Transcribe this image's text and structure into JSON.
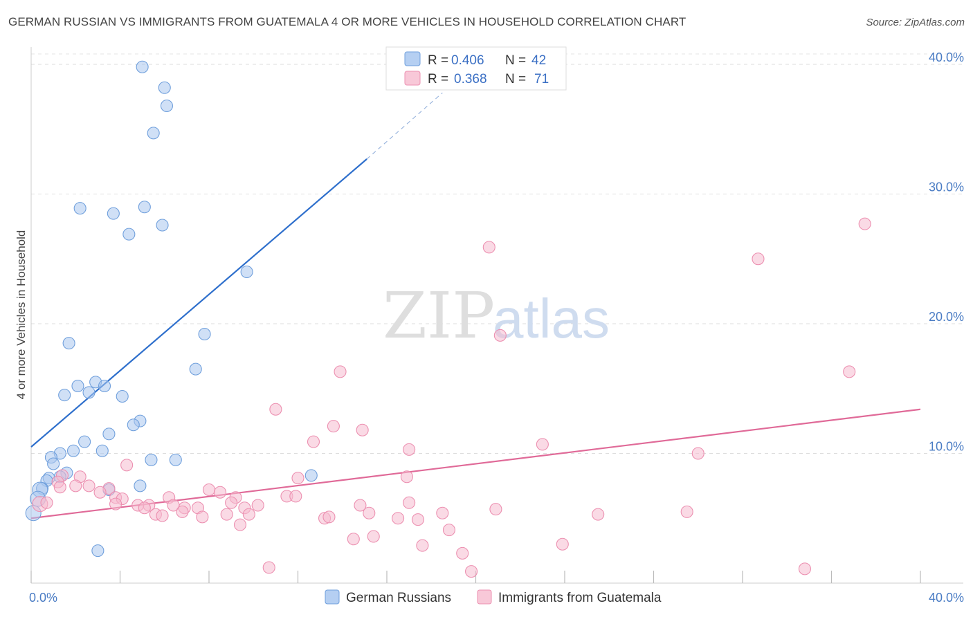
{
  "title": "GERMAN RUSSIAN VS IMMIGRANTS FROM GUATEMALA 4 OR MORE VEHICLES IN HOUSEHOLD CORRELATION CHART",
  "source": "Source: ZipAtlas.com",
  "watermark": {
    "zip": "ZIP",
    "atlas": "atlas"
  },
  "chart_data": {
    "type": "scatter",
    "ylabel": "4 or more Vehicles in Household",
    "xlabel": "",
    "xlim": [
      0,
      40
    ],
    "ylim": [
      0,
      40.8
    ],
    "y_ticks": [
      10,
      20,
      30,
      40
    ],
    "y_tick_labels": [
      "10.0%",
      "20.0%",
      "30.0%",
      "40.0%"
    ],
    "x_tick_labels": [
      "0.0%",
      "40.0%"
    ],
    "grid": true,
    "legend_position": "top-center",
    "stats": [
      {
        "r_label": "R =",
        "r": "0.406",
        "n_label": "N =",
        "n": "42"
      },
      {
        "r_label": "R =",
        "r": "0.368",
        "n_label": "N =",
        "n": "71"
      }
    ],
    "series": [
      {
        "name": "German Russians",
        "color": "#a9c6ee",
        "stroke": "#6f9fdc",
        "trend_color": "#2e6fcc",
        "trend": {
          "x0": 0,
          "y0": 10.5,
          "x1": 15.1,
          "y1": 32.7,
          "dash_x1": 18.5,
          "dash_y1": 37.8
        },
        "points": [
          [
            5.0,
            39.8
          ],
          [
            6.0,
            38.2
          ],
          [
            6.1,
            36.8
          ],
          [
            5.5,
            34.7
          ],
          [
            2.2,
            28.9
          ],
          [
            3.7,
            28.5
          ],
          [
            5.1,
            29.0
          ],
          [
            5.9,
            27.6
          ],
          [
            4.4,
            26.9
          ],
          [
            9.7,
            24.0
          ],
          [
            1.7,
            18.5
          ],
          [
            7.8,
            19.2
          ],
          [
            7.4,
            16.5
          ],
          [
            2.1,
            15.2
          ],
          [
            2.9,
            15.5
          ],
          [
            3.3,
            15.2
          ],
          [
            1.5,
            14.5
          ],
          [
            2.6,
            14.7
          ],
          [
            4.1,
            14.4
          ],
          [
            4.9,
            12.5
          ],
          [
            4.6,
            12.2
          ],
          [
            3.5,
            11.5
          ],
          [
            2.4,
            10.9
          ],
          [
            1.9,
            10.2
          ],
          [
            3.2,
            10.2
          ],
          [
            1.3,
            10.0
          ],
          [
            0.9,
            9.7
          ],
          [
            1.0,
            9.2
          ],
          [
            5.4,
            9.5
          ],
          [
            6.5,
            9.5
          ],
          [
            1.6,
            8.5
          ],
          [
            1.3,
            8.2
          ],
          [
            0.8,
            8.1
          ],
          [
            0.7,
            7.9
          ],
          [
            4.9,
            7.5
          ],
          [
            0.5,
            7.3
          ],
          [
            0.4,
            7.2
          ],
          [
            3.5,
            7.2
          ],
          [
            12.6,
            8.3
          ],
          [
            3.0,
            2.5
          ],
          [
            0.1,
            5.4
          ],
          [
            0.3,
            6.5
          ]
        ]
      },
      {
        "name": "Immigrants from Guatemala",
        "color": "#f6bcd0",
        "stroke": "#ec8fb0",
        "trend_color": "#e06a98",
        "trend": {
          "x0": 0,
          "y0": 5.0,
          "x1": 40,
          "y1": 13.4
        },
        "points": [
          [
            37.5,
            27.7
          ],
          [
            20.6,
            25.9
          ],
          [
            32.7,
            25.0
          ],
          [
            21.1,
            19.1
          ],
          [
            36.8,
            16.3
          ],
          [
            13.9,
            16.3
          ],
          [
            11.0,
            13.4
          ],
          [
            13.6,
            12.1
          ],
          [
            14.9,
            11.8
          ],
          [
            12.7,
            10.9
          ],
          [
            17.0,
            10.3
          ],
          [
            23.0,
            10.7
          ],
          [
            30.0,
            10.0
          ],
          [
            4.3,
            9.1
          ],
          [
            2.2,
            8.2
          ],
          [
            12.0,
            8.1
          ],
          [
            16.9,
            8.2
          ],
          [
            1.4,
            8.3
          ],
          [
            1.2,
            7.8
          ],
          [
            2.0,
            7.5
          ],
          [
            2.6,
            7.5
          ],
          [
            1.3,
            7.4
          ],
          [
            3.5,
            7.3
          ],
          [
            8.0,
            7.2
          ],
          [
            8.5,
            7.0
          ],
          [
            3.1,
            7.0
          ],
          [
            6.2,
            6.6
          ],
          [
            3.8,
            6.6
          ],
          [
            9.2,
            6.6
          ],
          [
            4.1,
            6.5
          ],
          [
            11.5,
            6.7
          ],
          [
            11.9,
            6.7
          ],
          [
            9.0,
            6.2
          ],
          [
            14.8,
            6.0
          ],
          [
            17.0,
            6.2
          ],
          [
            3.8,
            6.1
          ],
          [
            6.4,
            6.0
          ],
          [
            5.3,
            6.0
          ],
          [
            4.8,
            6.0
          ],
          [
            5.1,
            5.8
          ],
          [
            6.9,
            5.8
          ],
          [
            7.5,
            5.8
          ],
          [
            9.6,
            5.8
          ],
          [
            10.2,
            6.0
          ],
          [
            0.4,
            6.1
          ],
          [
            0.7,
            6.2
          ],
          [
            5.6,
            5.3
          ],
          [
            5.9,
            5.2
          ],
          [
            6.8,
            5.5
          ],
          [
            7.7,
            5.1
          ],
          [
            8.8,
            5.3
          ],
          [
            9.8,
            5.3
          ],
          [
            15.2,
            5.4
          ],
          [
            18.5,
            5.4
          ],
          [
            20.9,
            5.7
          ],
          [
            25.5,
            5.3
          ],
          [
            29.5,
            5.5
          ],
          [
            13.2,
            5.0
          ],
          [
            13.4,
            5.1
          ],
          [
            16.5,
            5.0
          ],
          [
            17.4,
            4.9
          ],
          [
            9.4,
            4.5
          ],
          [
            18.8,
            4.1
          ],
          [
            15.4,
            3.6
          ],
          [
            14.5,
            3.4
          ],
          [
            17.6,
            2.9
          ],
          [
            23.9,
            3.0
          ],
          [
            19.4,
            2.3
          ],
          [
            10.7,
            1.2
          ],
          [
            34.8,
            1.1
          ],
          [
            19.8,
            0.9
          ]
        ]
      }
    ]
  }
}
